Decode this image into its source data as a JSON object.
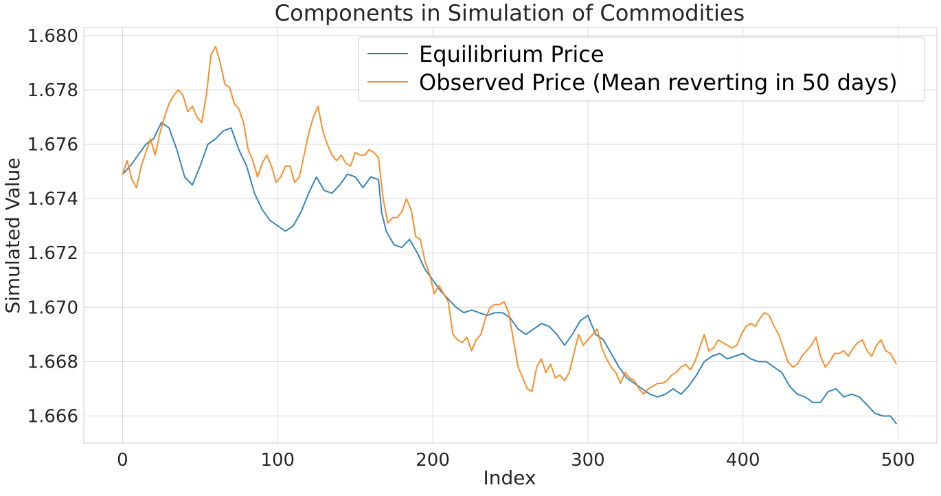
{
  "chart_data": {
    "type": "line",
    "title": "Components in Simulation of Commodities",
    "xlabel": "Index",
    "ylabel": "Simulated Value",
    "xlim": [
      -25,
      525
    ],
    "ylim": [
      1.665,
      1.6803
    ],
    "x_ticks": [
      0,
      100,
      200,
      300,
      400,
      500
    ],
    "y_ticks": [
      1.666,
      1.668,
      1.67,
      1.672,
      1.674,
      1.676,
      1.678,
      1.68
    ],
    "x_tick_labels": [
      "0",
      "100",
      "200",
      "300",
      "400",
      "500"
    ],
    "y_tick_labels": [
      "1.666",
      "1.668",
      "1.670",
      "1.672",
      "1.674",
      "1.676",
      "1.678",
      "1.680"
    ],
    "grid": true,
    "legend_position": "top-right",
    "series": [
      {
        "name": "Equilibrium Price",
        "color": "#1f77b4",
        "points": [
          [
            0,
            1.6749
          ],
          [
            5,
            1.6752
          ],
          [
            10,
            1.6756
          ],
          [
            15,
            1.676
          ],
          [
            20,
            1.6762
          ],
          [
            25,
            1.6768
          ],
          [
            30,
            1.6766
          ],
          [
            35,
            1.6758
          ],
          [
            40,
            1.6748
          ],
          [
            45,
            1.6745
          ],
          [
            50,
            1.6752
          ],
          [
            55,
            1.676
          ],
          [
            60,
            1.6762
          ],
          [
            65,
            1.6765
          ],
          [
            70,
            1.6766
          ],
          [
            75,
            1.6758
          ],
          [
            80,
            1.6752
          ],
          [
            85,
            1.6742
          ],
          [
            90,
            1.6736
          ],
          [
            95,
            1.6732
          ],
          [
            100,
            1.673
          ],
          [
            105,
            1.6728
          ],
          [
            110,
            1.673
          ],
          [
            115,
            1.6735
          ],
          [
            120,
            1.6742
          ],
          [
            125,
            1.6748
          ],
          [
            130,
            1.6743
          ],
          [
            135,
            1.6742
          ],
          [
            140,
            1.6745
          ],
          [
            145,
            1.6749
          ],
          [
            150,
            1.6748
          ],
          [
            155,
            1.6744
          ],
          [
            160,
            1.6748
          ],
          [
            165,
            1.6747
          ],
          [
            167,
            1.6735
          ],
          [
            170,
            1.6728
          ],
          [
            175,
            1.6723
          ],
          [
            180,
            1.6722
          ],
          [
            185,
            1.6725
          ],
          [
            190,
            1.672
          ],
          [
            195,
            1.6714
          ],
          [
            200,
            1.671
          ],
          [
            205,
            1.6706
          ],
          [
            210,
            1.6703
          ],
          [
            215,
            1.67
          ],
          [
            220,
            1.6698
          ],
          [
            225,
            1.6699
          ],
          [
            230,
            1.6698
          ],
          [
            235,
            1.6697
          ],
          [
            240,
            1.6698
          ],
          [
            245,
            1.6698
          ],
          [
            250,
            1.6696
          ],
          [
            255,
            1.6692
          ],
          [
            260,
            1.669
          ],
          [
            265,
            1.6692
          ],
          [
            270,
            1.6694
          ],
          [
            275,
            1.6693
          ],
          [
            280,
            1.669
          ],
          [
            285,
            1.6686
          ],
          [
            290,
            1.669
          ],
          [
            295,
            1.6695
          ],
          [
            300,
            1.6697
          ],
          [
            305,
            1.669
          ],
          [
            310,
            1.6688
          ],
          [
            315,
            1.6683
          ],
          [
            320,
            1.6678
          ],
          [
            325,
            1.6674
          ],
          [
            330,
            1.6672
          ],
          [
            335,
            1.667
          ],
          [
            340,
            1.6668
          ],
          [
            345,
            1.6667
          ],
          [
            350,
            1.6668
          ],
          [
            355,
            1.667
          ],
          [
            360,
            1.6668
          ],
          [
            365,
            1.6671
          ],
          [
            370,
            1.6675
          ],
          [
            375,
            1.668
          ],
          [
            380,
            1.6682
          ],
          [
            385,
            1.6683
          ],
          [
            390,
            1.6681
          ],
          [
            395,
            1.6682
          ],
          [
            400,
            1.6683
          ],
          [
            405,
            1.6681
          ],
          [
            410,
            1.668
          ],
          [
            415,
            1.668
          ],
          [
            420,
            1.6678
          ],
          [
            425,
            1.6676
          ],
          [
            430,
            1.6671
          ],
          [
            435,
            1.6668
          ],
          [
            440,
            1.6667
          ],
          [
            445,
            1.6665
          ],
          [
            450,
            1.6665
          ],
          [
            455,
            1.6669
          ],
          [
            460,
            1.667
          ],
          [
            465,
            1.6667
          ],
          [
            470,
            1.6668
          ],
          [
            475,
            1.6667
          ],
          [
            480,
            1.6664
          ],
          [
            485,
            1.6661
          ],
          [
            490,
            1.666
          ],
          [
            495,
            1.666
          ],
          [
            499,
            1.6657
          ]
        ]
      },
      {
        "name": "Observed Price (Mean reverting in 50 days)",
        "color": "#ff7f0e",
        "points": [
          [
            0,
            1.6749
          ],
          [
            3,
            1.6754
          ],
          [
            6,
            1.6747
          ],
          [
            9,
            1.6744
          ],
          [
            12,
            1.6752
          ],
          [
            15,
            1.6757
          ],
          [
            18,
            1.6762
          ],
          [
            21,
            1.6756
          ],
          [
            24,
            1.6764
          ],
          [
            27,
            1.677
          ],
          [
            30,
            1.6775
          ],
          [
            33,
            1.6778
          ],
          [
            36,
            1.678
          ],
          [
            39,
            1.6778
          ],
          [
            42,
            1.6772
          ],
          [
            45,
            1.6774
          ],
          [
            48,
            1.677
          ],
          [
            51,
            1.6768
          ],
          [
            54,
            1.6778
          ],
          [
            57,
            1.6793
          ],
          [
            60,
            1.6796
          ],
          [
            63,
            1.679
          ],
          [
            66,
            1.6782
          ],
          [
            69,
            1.6781
          ],
          [
            72,
            1.6775
          ],
          [
            75,
            1.6773
          ],
          [
            78,
            1.6768
          ],
          [
            81,
            1.6758
          ],
          [
            84,
            1.6754
          ],
          [
            87,
            1.6748
          ],
          [
            90,
            1.6753
          ],
          [
            93,
            1.6756
          ],
          [
            96,
            1.6752
          ],
          [
            99,
            1.6746
          ],
          [
            102,
            1.6748
          ],
          [
            105,
            1.6752
          ],
          [
            108,
            1.6752
          ],
          [
            111,
            1.6746
          ],
          [
            114,
            1.6748
          ],
          [
            117,
            1.6756
          ],
          [
            120,
            1.6764
          ],
          [
            123,
            1.677
          ],
          [
            126,
            1.6774
          ],
          [
            129,
            1.6765
          ],
          [
            132,
            1.676
          ],
          [
            135,
            1.6756
          ],
          [
            138,
            1.6754
          ],
          [
            141,
            1.6756
          ],
          [
            144,
            1.6753
          ],
          [
            147,
            1.6752
          ],
          [
            150,
            1.6757
          ],
          [
            153,
            1.6756
          ],
          [
            156,
            1.6756
          ],
          [
            159,
            1.6758
          ],
          [
            162,
            1.6757
          ],
          [
            165,
            1.6755
          ],
          [
            168,
            1.674
          ],
          [
            171,
            1.6731
          ],
          [
            174,
            1.6733
          ],
          [
            177,
            1.6733
          ],
          [
            180,
            1.6735
          ],
          [
            183,
            1.674
          ],
          [
            186,
            1.6736
          ],
          [
            189,
            1.6726
          ],
          [
            192,
            1.6725
          ],
          [
            195,
            1.6717
          ],
          [
            198,
            1.6712
          ],
          [
            201,
            1.6705
          ],
          [
            204,
            1.6708
          ],
          [
            207,
            1.6705
          ],
          [
            210,
            1.6702
          ],
          [
            213,
            1.669
          ],
          [
            216,
            1.6688
          ],
          [
            219,
            1.6687
          ],
          [
            222,
            1.6689
          ],
          [
            225,
            1.6684
          ],
          [
            228,
            1.6688
          ],
          [
            231,
            1.669
          ],
          [
            234,
            1.6696
          ],
          [
            237,
            1.67
          ],
          [
            240,
            1.6701
          ],
          [
            243,
            1.6701
          ],
          [
            246,
            1.6702
          ],
          [
            249,
            1.6698
          ],
          [
            252,
            1.6688
          ],
          [
            255,
            1.6678
          ],
          [
            258,
            1.6674
          ],
          [
            261,
            1.667
          ],
          [
            264,
            1.6669
          ],
          [
            267,
            1.6678
          ],
          [
            270,
            1.6681
          ],
          [
            273,
            1.6676
          ],
          [
            276,
            1.6679
          ],
          [
            279,
            1.6674
          ],
          [
            282,
            1.6675
          ],
          [
            285,
            1.6673
          ],
          [
            288,
            1.6676
          ],
          [
            291,
            1.6683
          ],
          [
            294,
            1.669
          ],
          [
            297,
            1.6686
          ],
          [
            300,
            1.6688
          ],
          [
            303,
            1.669
          ],
          [
            306,
            1.6692
          ],
          [
            309,
            1.6685
          ],
          [
            312,
            1.6681
          ],
          [
            315,
            1.6678
          ],
          [
            318,
            1.6676
          ],
          [
            321,
            1.6672
          ],
          [
            324,
            1.6676
          ],
          [
            327,
            1.6674
          ],
          [
            330,
            1.6673
          ],
          [
            333,
            1.667
          ],
          [
            336,
            1.6668
          ],
          [
            339,
            1.667
          ],
          [
            342,
            1.6671
          ],
          [
            345,
            1.6672
          ],
          [
            348,
            1.6672
          ],
          [
            351,
            1.6673
          ],
          [
            354,
            1.6675
          ],
          [
            357,
            1.6676
          ],
          [
            360,
            1.6678
          ],
          [
            363,
            1.6679
          ],
          [
            366,
            1.6677
          ],
          [
            369,
            1.668
          ],
          [
            372,
            1.6685
          ],
          [
            375,
            1.669
          ],
          [
            378,
            1.6684
          ],
          [
            381,
            1.6685
          ],
          [
            384,
            1.6688
          ],
          [
            387,
            1.6687
          ],
          [
            390,
            1.6686
          ],
          [
            393,
            1.6685
          ],
          [
            396,
            1.6686
          ],
          [
            399,
            1.669
          ],
          [
            402,
            1.6693
          ],
          [
            405,
            1.6694
          ],
          [
            408,
            1.6693
          ],
          [
            411,
            1.6696
          ],
          [
            414,
            1.6698
          ],
          [
            417,
            1.6697
          ],
          [
            420,
            1.6693
          ],
          [
            423,
            1.669
          ],
          [
            426,
            1.6685
          ],
          [
            429,
            1.668
          ],
          [
            432,
            1.6678
          ],
          [
            435,
            1.6679
          ],
          [
            438,
            1.6682
          ],
          [
            441,
            1.6684
          ],
          [
            444,
            1.6686
          ],
          [
            447,
            1.6689
          ],
          [
            450,
            1.6682
          ],
          [
            453,
            1.6678
          ],
          [
            456,
            1.668
          ],
          [
            459,
            1.6683
          ],
          [
            462,
            1.6683
          ],
          [
            465,
            1.6684
          ],
          [
            468,
            1.6682
          ],
          [
            471,
            1.6685
          ],
          [
            474,
            1.6687
          ],
          [
            477,
            1.6688
          ],
          [
            480,
            1.6684
          ],
          [
            483,
            1.6682
          ],
          [
            486,
            1.6686
          ],
          [
            489,
            1.6688
          ],
          [
            492,
            1.6684
          ],
          [
            495,
            1.6683
          ],
          [
            499,
            1.6679
          ]
        ]
      }
    ]
  }
}
